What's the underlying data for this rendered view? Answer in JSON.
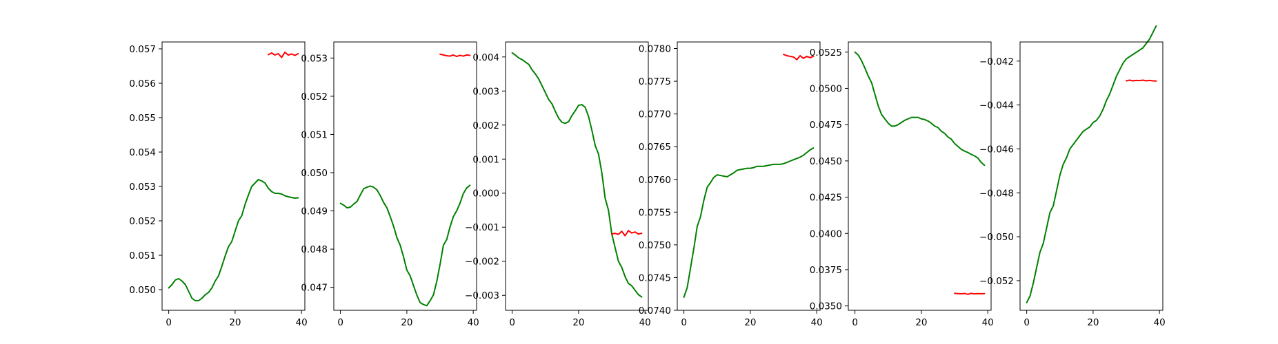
{
  "chart_data": [
    {
      "type": "line",
      "xlim": [
        -2,
        41
      ],
      "ylim": [
        0.0494,
        0.0572
      ],
      "xticks": [
        0,
        20,
        40
      ],
      "xtick_labels": [
        "0",
        "20",
        "40"
      ],
      "yticks": [
        0.05,
        0.051,
        0.052,
        0.053,
        0.054,
        0.055,
        0.056,
        0.057
      ],
      "ytick_labels": [
        "0.050",
        "0.051",
        "0.052",
        "0.053",
        "0.054",
        "0.055",
        "0.056",
        "0.057"
      ],
      "grid": false,
      "series": [
        {
          "color": "#008000",
          "x": [
            0,
            1,
            2,
            3,
            4,
            5,
            6,
            7,
            8,
            9,
            10,
            11,
            12,
            13,
            14,
            15,
            16,
            17,
            18,
            19,
            20,
            21,
            22,
            23,
            24,
            25,
            26,
            27,
            28,
            29,
            30,
            31,
            32,
            33,
            34,
            35,
            36,
            37,
            38,
            39
          ],
          "y": [
            0.05005,
            0.05015,
            0.05028,
            0.05032,
            0.05025,
            0.05015,
            0.04995,
            0.04975,
            0.04968,
            0.04968,
            0.04975,
            0.04985,
            0.04992,
            0.05005,
            0.05025,
            0.0504,
            0.05068,
            0.05098,
            0.05125,
            0.0514,
            0.0517,
            0.052,
            0.05215,
            0.05248,
            0.05275,
            0.053,
            0.0531,
            0.0532,
            0.05316,
            0.0531,
            0.05295,
            0.05285,
            0.0528,
            0.0528,
            0.05278,
            0.05273,
            0.0527,
            0.05268,
            0.05266,
            0.05267
          ]
        },
        {
          "color": "#ff0000",
          "x": [
            30,
            31,
            32,
            33,
            34,
            35,
            36,
            37,
            38,
            39
          ],
          "y": [
            0.05683,
            0.05688,
            0.05682,
            0.05686,
            0.05675,
            0.0569,
            0.05682,
            0.05685,
            0.05681,
            0.05686
          ]
        }
      ]
    },
    {
      "type": "line",
      "xlim": [
        -2,
        41
      ],
      "ylim": [
        0.0464,
        0.05342
      ],
      "xticks": [
        0,
        20,
        40
      ],
      "xtick_labels": [
        "0",
        "20",
        "40"
      ],
      "yticks": [
        0.047,
        0.048,
        0.049,
        0.05,
        0.051,
        0.052,
        0.053
      ],
      "ytick_labels": [
        "0.047",
        "0.048",
        "0.049",
        "0.050",
        "0.051",
        "0.052",
        "0.053"
      ],
      "grid": false,
      "series": [
        {
          "color": "#008000",
          "x": [
            0,
            1,
            2,
            3,
            4,
            5,
            6,
            7,
            8,
            9,
            10,
            11,
            12,
            13,
            14,
            15,
            16,
            17,
            18,
            19,
            20,
            21,
            22,
            23,
            24,
            25,
            26,
            27,
            28,
            29,
            30,
            31,
            32,
            33,
            34,
            35,
            36,
            37,
            38,
            39
          ],
          "y": [
            0.0492,
            0.04915,
            0.04908,
            0.0491,
            0.04918,
            0.04925,
            0.04942,
            0.04958,
            0.04962,
            0.04965,
            0.04962,
            0.04955,
            0.0494,
            0.04922,
            0.04908,
            0.04885,
            0.0486,
            0.0483,
            0.0481,
            0.0478,
            0.04745,
            0.0473,
            0.04705,
            0.0468,
            0.0466,
            0.04655,
            0.04652,
            0.04665,
            0.0468,
            0.04715,
            0.0476,
            0.0481,
            0.04825,
            0.04858,
            0.04885,
            0.049,
            0.0492,
            0.04945,
            0.0496,
            0.04967
          ]
        },
        {
          "color": "#ff0000",
          "x": [
            30,
            31,
            32,
            33,
            34,
            35,
            36,
            37,
            38,
            39
          ],
          "y": [
            0.0531,
            0.05308,
            0.05306,
            0.05305,
            0.05308,
            0.05304,
            0.05307,
            0.05305,
            0.05308,
            0.05307
          ]
        }
      ]
    },
    {
      "type": "line",
      "xlim": [
        -2,
        41
      ],
      "ylim": [
        -0.00344,
        0.00444
      ],
      "xticks": [
        0,
        20,
        40
      ],
      "xtick_labels": [
        "0",
        "20",
        "40"
      ],
      "yticks": [
        -0.003,
        -0.002,
        -0.001,
        0.0,
        0.001,
        0.002,
        0.003,
        0.004
      ],
      "ytick_labels": [
        "−0.003",
        "−0.002",
        "−0.001",
        "0.000",
        "0.001",
        "0.002",
        "0.003",
        "0.004"
      ],
      "grid": false,
      "series": [
        {
          "color": "#008000",
          "x": [
            0,
            1,
            2,
            3,
            4,
            5,
            6,
            7,
            8,
            9,
            10,
            11,
            12,
            13,
            14,
            15,
            16,
            17,
            18,
            19,
            20,
            21,
            22,
            23,
            24,
            25,
            26,
            27,
            28,
            29,
            30,
            31,
            32,
            33,
            34,
            35,
            36,
            37,
            38,
            39
          ],
          "y": [
            0.00412,
            0.00405,
            0.00397,
            0.00392,
            0.00385,
            0.00378,
            0.00362,
            0.0035,
            0.00335,
            0.00315,
            0.00295,
            0.00275,
            0.00262,
            0.0024,
            0.0022,
            0.00208,
            0.00205,
            0.0021,
            0.00228,
            0.00242,
            0.00258,
            0.0026,
            0.00252,
            0.00225,
            0.00185,
            0.0014,
            0.00115,
            0.0006,
            -0.00015,
            -0.0005,
            -0.0012,
            -0.0016,
            -0.002,
            -0.00218,
            -0.00245,
            -0.00265,
            -0.00272,
            -0.00285,
            -0.00298,
            -0.00305
          ]
        },
        {
          "color": "#ff0000",
          "x": [
            30,
            31,
            32,
            33,
            34,
            35,
            36,
            37,
            38,
            39
          ],
          "y": [
            -0.0012,
            -0.00118,
            -0.00121,
            -0.00112,
            -0.00125,
            -0.0011,
            -0.00117,
            -0.00114,
            -0.0012,
            -0.00118
          ]
        }
      ]
    },
    {
      "type": "line",
      "xlim": [
        -2,
        41
      ],
      "ylim": [
        0.074,
        0.0781
      ],
      "xticks": [
        0,
        20,
        40
      ],
      "xtick_labels": [
        "0",
        "20",
        "40"
      ],
      "yticks": [
        0.074,
        0.0745,
        0.075,
        0.0755,
        0.076,
        0.0765,
        0.077,
        0.0775,
        0.078
      ],
      "ytick_labels": [
        "0.0740",
        "0.0745",
        "0.0750",
        "0.0755",
        "0.0760",
        "0.0765",
        "0.0770",
        "0.0775",
        "0.0780"
      ],
      "grid": false,
      "series": [
        {
          "color": "#008000",
          "x": [
            0,
            1,
            2,
            3,
            4,
            5,
            6,
            7,
            8,
            9,
            10,
            11,
            12,
            13,
            14,
            15,
            16,
            17,
            18,
            19,
            20,
            21,
            22,
            23,
            24,
            25,
            26,
            27,
            28,
            29,
            30,
            31,
            32,
            33,
            34,
            35,
            36,
            37,
            38,
            39
          ],
          "y": [
            0.0742,
            0.07435,
            0.07465,
            0.07495,
            0.07528,
            0.07543,
            0.07568,
            0.07588,
            0.07595,
            0.07603,
            0.07607,
            0.07606,
            0.07605,
            0.07604,
            0.07607,
            0.0761,
            0.07614,
            0.07615,
            0.07616,
            0.07617,
            0.07617,
            0.07618,
            0.0762,
            0.0762,
            0.0762,
            0.07621,
            0.07622,
            0.07623,
            0.07623,
            0.07623,
            0.07624,
            0.07626,
            0.07628,
            0.0763,
            0.07632,
            0.07634,
            0.07637,
            0.07641,
            0.07645,
            0.07648
          ]
        },
        {
          "color": "#ff0000",
          "x": [
            30,
            31,
            32,
            33,
            34,
            35,
            36,
            37,
            38,
            39
          ],
          "y": [
            0.07791,
            0.07789,
            0.07788,
            0.07787,
            0.07783,
            0.07789,
            0.07785,
            0.07788,
            0.07786,
            0.07788
          ]
        }
      ]
    },
    {
      "type": "line",
      "xlim": [
        -2,
        41
      ],
      "ylim": [
        0.0347,
        0.0532
      ],
      "xticks": [
        0,
        20,
        40
      ],
      "xtick_labels": [
        "0",
        "20",
        "40"
      ],
      "yticks": [
        0.035,
        0.0375,
        0.04,
        0.0425,
        0.045,
        0.0475,
        0.05,
        0.0525
      ],
      "ytick_labels": [
        "0.0350",
        "0.0375",
        "0.0400",
        "0.0425",
        "0.0450",
        "0.0475",
        "0.0500",
        "0.0525"
      ],
      "grid": false,
      "series": [
        {
          "color": "#008000",
          "x": [
            0,
            1,
            2,
            3,
            4,
            5,
            6,
            7,
            8,
            9,
            10,
            11,
            12,
            13,
            14,
            15,
            16,
            17,
            18,
            19,
            20,
            21,
            22,
            23,
            24,
            25,
            26,
            27,
            28,
            29,
            30,
            31,
            32,
            33,
            34,
            35,
            36,
            37,
            38,
            39
          ],
          "y": [
            0.0525,
            0.0523,
            0.0519,
            0.0514,
            0.05085,
            0.0504,
            0.0496,
            0.0488,
            0.0482,
            0.0479,
            0.0476,
            0.0474,
            0.0474,
            0.0475,
            0.04765,
            0.0478,
            0.0479,
            0.048,
            0.048,
            0.048,
            0.0479,
            0.04785,
            0.04775,
            0.0476,
            0.0474,
            0.0473,
            0.04705,
            0.0469,
            0.04665,
            0.0465,
            0.0462,
            0.046,
            0.0458,
            0.04568,
            0.04558,
            0.04545,
            0.04535,
            0.0452,
            0.0449,
            0.0447
          ]
        },
        {
          "color": "#ff0000",
          "x": [
            30,
            31,
            32,
            33,
            34,
            35,
            36,
            37,
            38,
            39
          ],
          "y": [
            0.03587,
            0.03585,
            0.03584,
            0.03586,
            0.0358,
            0.03587,
            0.03583,
            0.03585,
            0.03584,
            0.03585
          ]
        }
      ]
    },
    {
      "type": "line",
      "xlim": [
        -2,
        41
      ],
      "ylim": [
        -0.05335,
        -0.04113
      ],
      "xticks": [
        0,
        20,
        40
      ],
      "xtick_labels": [
        "0",
        "20",
        "40"
      ],
      "yticks": [
        -0.052,
        -0.05,
        -0.048,
        -0.046,
        -0.044,
        -0.042
      ],
      "ytick_labels": [
        "−0.052",
        "−0.050",
        "−0.048",
        "−0.046",
        "−0.044",
        "−0.042"
      ],
      "grid": false,
      "series": [
        {
          "color": "#008000",
          "x": [
            0,
            1,
            2,
            3,
            4,
            5,
            6,
            7,
            8,
            9,
            10,
            11,
            12,
            13,
            14,
            15,
            16,
            17,
            18,
            19,
            20,
            21,
            22,
            23,
            24,
            25,
            26,
            27,
            28,
            29,
            30,
            31,
            32,
            33,
            34,
            35,
            36,
            37,
            38,
            39
          ],
          "y": [
            -0.053,
            -0.0527,
            -0.0521,
            -0.0514,
            -0.0507,
            -0.0503,
            -0.0496,
            -0.0489,
            -0.0486,
            -0.0479,
            -0.0472,
            -0.0467,
            -0.0464,
            -0.046,
            -0.0458,
            -0.0456,
            -0.0454,
            -0.0452,
            -0.0451,
            -0.045,
            -0.0448,
            -0.0447,
            -0.0445,
            -0.0442,
            -0.0438,
            -0.0435,
            -0.0431,
            -0.0427,
            -0.0424,
            -0.0421,
            -0.0419,
            -0.0418,
            -0.0417,
            -0.0416,
            -0.0415,
            -0.0414,
            -0.0412,
            -0.041,
            -0.0407,
            -0.0404
          ]
        },
        {
          "color": "#ff0000",
          "x": [
            30,
            31,
            32,
            33,
            34,
            35,
            36,
            37,
            38,
            39
          ],
          "y": [
            -0.0429,
            -0.04287,
            -0.0429,
            -0.04288,
            -0.04289,
            -0.04287,
            -0.0429,
            -0.04288,
            -0.0429,
            -0.04291
          ]
        }
      ]
    }
  ]
}
